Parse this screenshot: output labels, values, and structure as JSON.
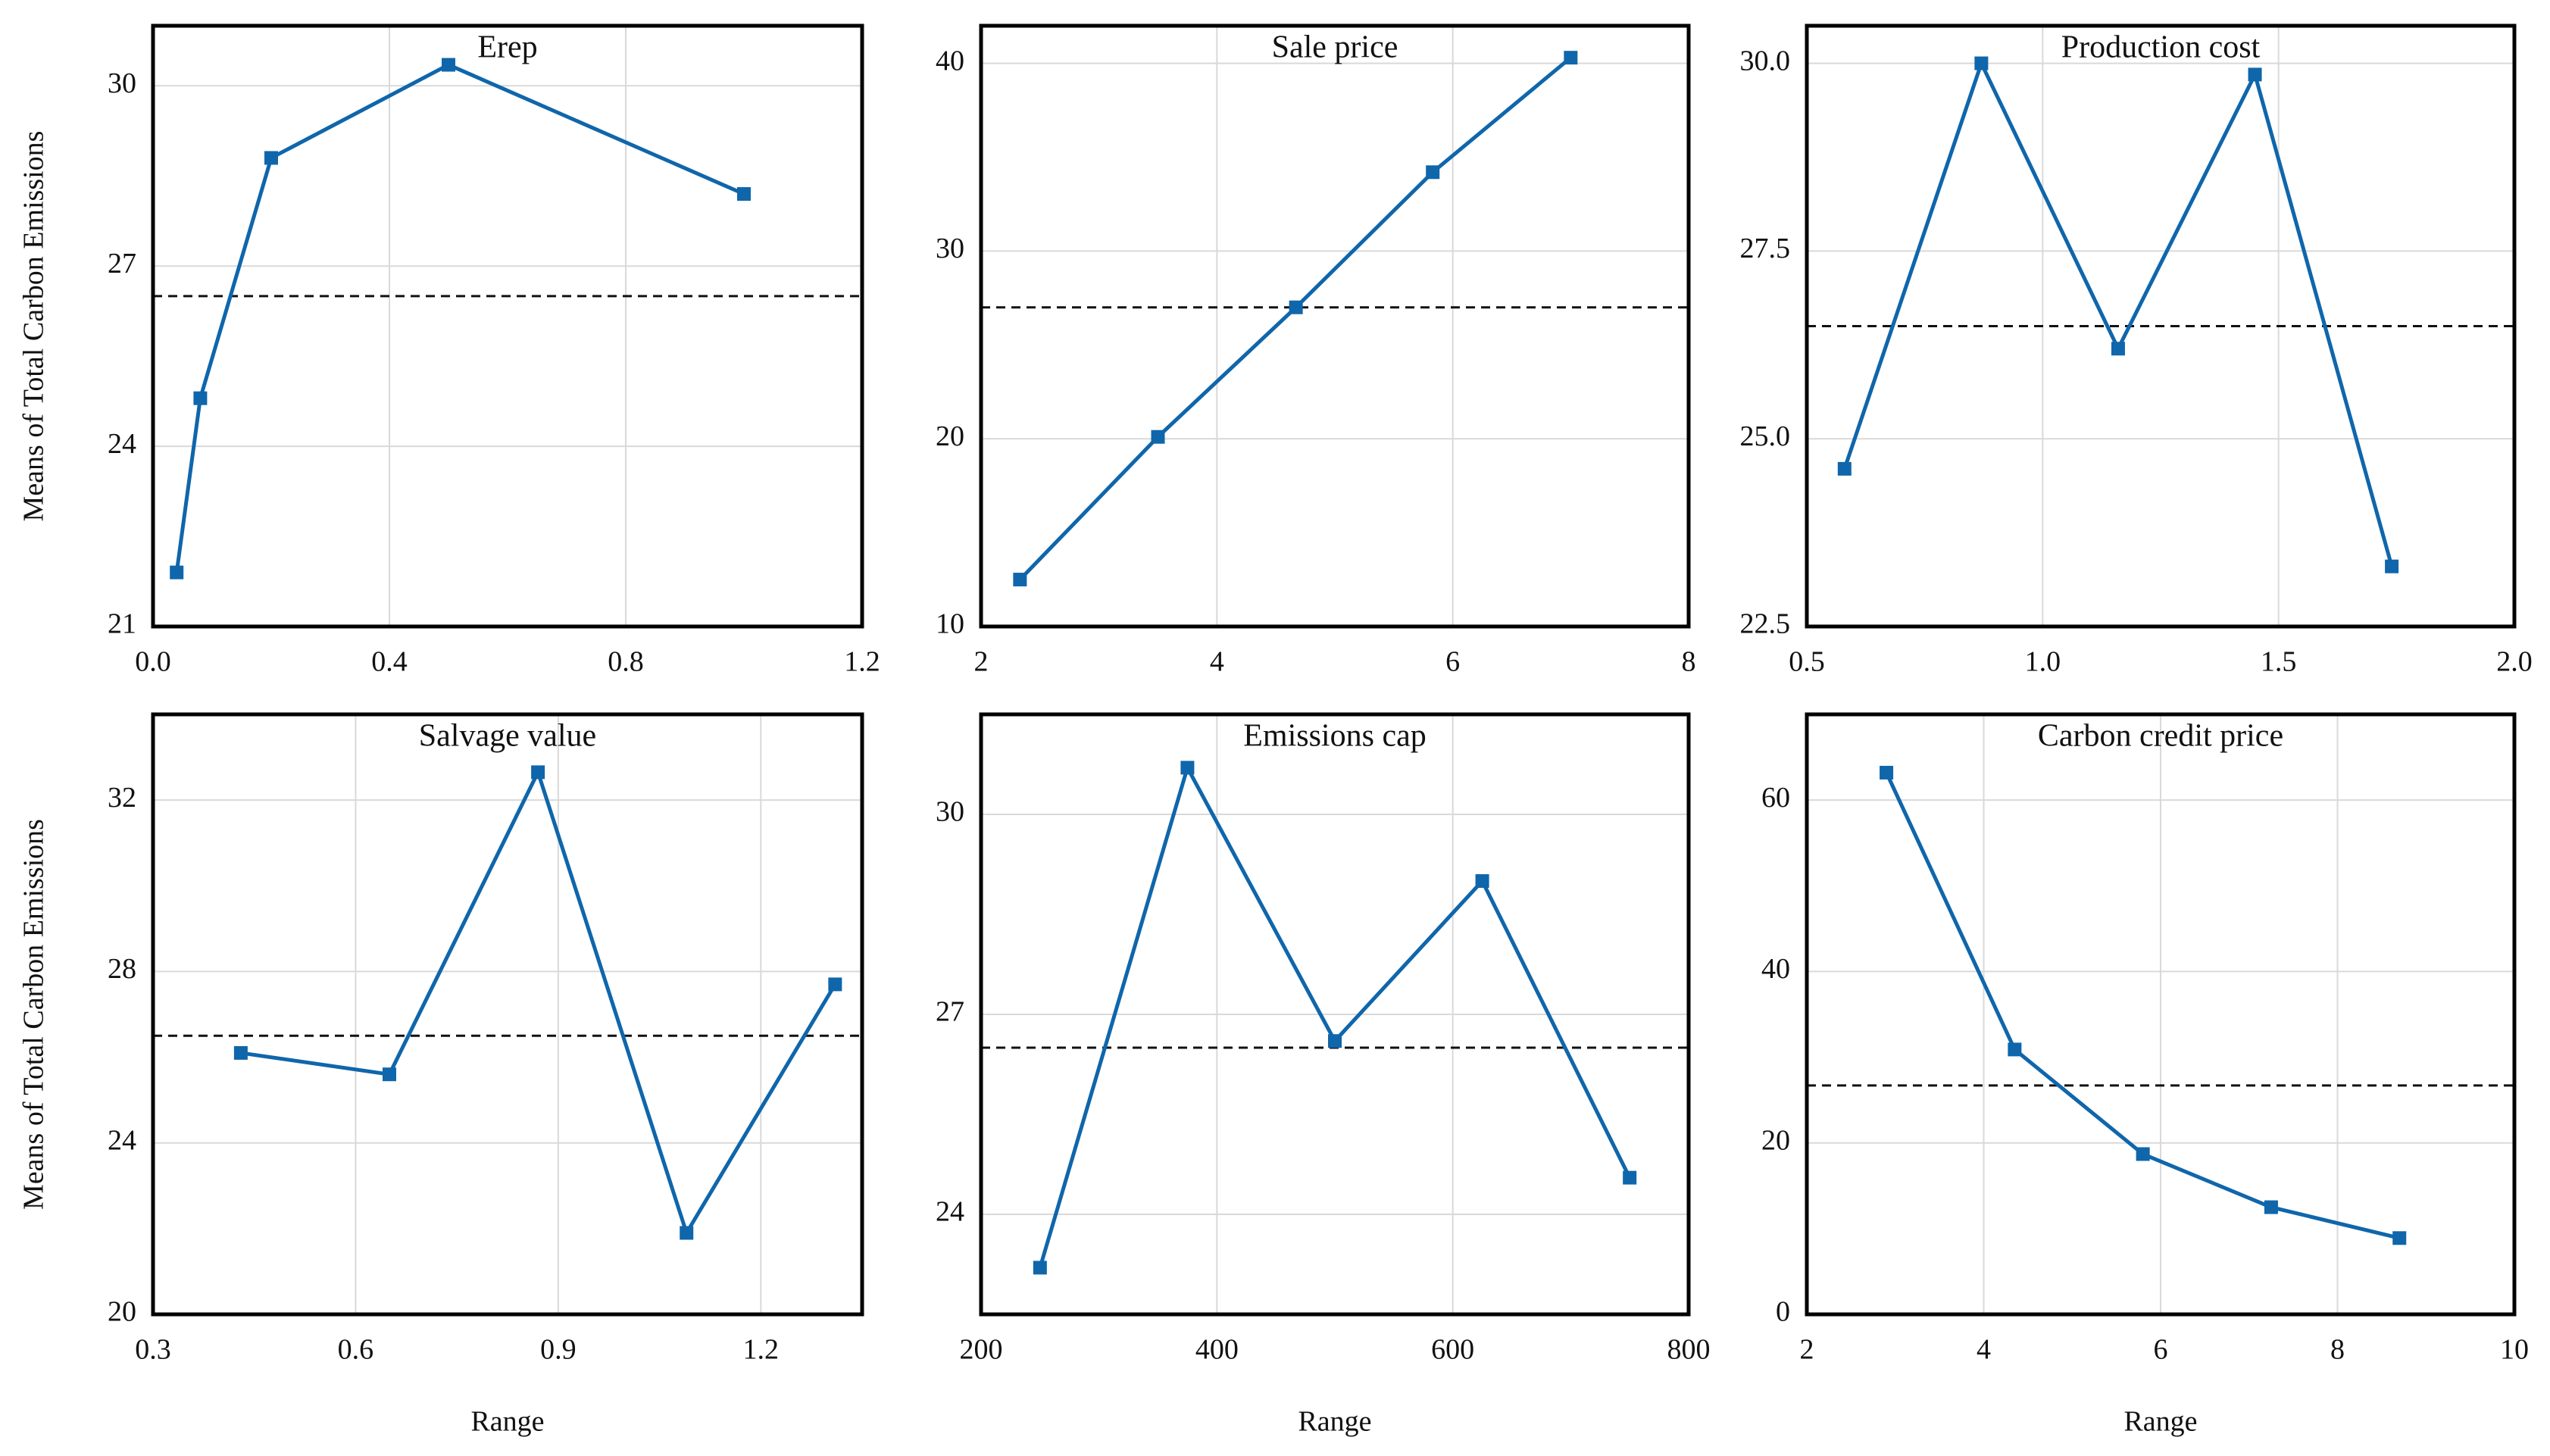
{
  "chart_data": [
    {
      "type": "line",
      "title": "Erep",
      "ylabel": "Means of Total Carbon Emissions",
      "x": [
        0.04,
        0.08,
        0.2,
        0.5,
        1.0
      ],
      "series": [
        {
          "color": "#0f66ab",
          "values": [
            21.9,
            24.8,
            28.8,
            30.35,
            28.2
          ]
        }
      ],
      "reference_line": 26.5,
      "xlim": [
        0,
        1.2
      ],
      "xticks": [
        {
          "value": 0,
          "label": "0.0"
        },
        0.4,
        0.8,
        1.2
      ],
      "ylim": [
        21,
        31
      ],
      "yticks": [
        21,
        24,
        27,
        30
      ],
      "grid": true
    },
    {
      "type": "line",
      "title": "Sale price",
      "x": [
        2.33,
        3.5,
        4.67,
        5.83,
        7.0
      ],
      "series": [
        {
          "color": "#0f66ab",
          "values": [
            12.5,
            20.1,
            27.0,
            34.2,
            40.3
          ]
        }
      ],
      "reference_line": 27.0,
      "xlim": [
        2,
        8
      ],
      "xticks": [
        2,
        4,
        6,
        8
      ],
      "ylim": [
        10,
        42
      ],
      "yticks": [
        10,
        20,
        30,
        40
      ],
      "grid": true
    },
    {
      "type": "line",
      "title": "Production cost",
      "x": [
        0.58,
        0.87,
        1.16,
        1.45,
        1.74
      ],
      "series": [
        {
          "color": "#0f66ab",
          "values": [
            24.6,
            30.0,
            26.2,
            29.85,
            23.3
          ]
        }
      ],
      "reference_line": 26.5,
      "xlim": [
        0.5,
        2.0
      ],
      "xticks": [
        0.5,
        {
          "value": 1,
          "label": "1.0"
        },
        1.5,
        {
          "value": 2,
          "label": "2.0"
        }
      ],
      "ylim": [
        22.5,
        30.5
      ],
      "yticks": [
        22.5,
        {
          "value": 25,
          "label": "25.0"
        },
        27.5,
        {
          "value": 30,
          "label": "30.0"
        }
      ],
      "grid": true
    },
    {
      "type": "line",
      "title": "Salvage value",
      "ylabel": "Means of Total Carbon Emissions",
      "xlabel": "Range",
      "x": [
        0.43,
        0.65,
        0.87,
        1.09,
        1.31
      ],
      "series": [
        {
          "color": "#0f66ab",
          "values": [
            26.1,
            25.6,
            32.65,
            21.9,
            27.7
          ]
        }
      ],
      "reference_line": 26.5,
      "xlim": [
        0.3,
        1.35
      ],
      "xticks": [
        0.3,
        0.6,
        0.9,
        1.2
      ],
      "ylim": [
        20,
        34
      ],
      "yticks": [
        20,
        24,
        28,
        32
      ],
      "grid": true
    },
    {
      "type": "line",
      "title": "Emissions cap",
      "xlabel": "Range",
      "x": [
        250,
        375,
        500,
        625,
        750
      ],
      "series": [
        {
          "color": "#0f66ab",
          "values": [
            23.2,
            30.7,
            26.6,
            29.0,
            24.55
          ]
        }
      ],
      "reference_line": 26.5,
      "xlim": [
        200,
        800
      ],
      "xticks": [
        200,
        400,
        600,
        800
      ],
      "ylim": [
        22.5,
        31.5
      ],
      "yticks": [
        24,
        27,
        30
      ],
      "grid": true
    },
    {
      "type": "line",
      "title": "Carbon credit price",
      "xlabel": "Range",
      "x": [
        2.9,
        4.35,
        5.8,
        7.25,
        8.7
      ],
      "series": [
        {
          "color": "#0f66ab",
          "values": [
            63.2,
            30.9,
            18.7,
            12.5,
            8.9
          ]
        }
      ],
      "reference_line": 26.7,
      "xlim": [
        2,
        10
      ],
      "xticks": [
        2,
        4,
        6,
        8,
        10
      ],
      "ylim": [
        0,
        70
      ],
      "yticks": [
        0,
        20,
        40,
        60
      ],
      "grid": true
    }
  ]
}
